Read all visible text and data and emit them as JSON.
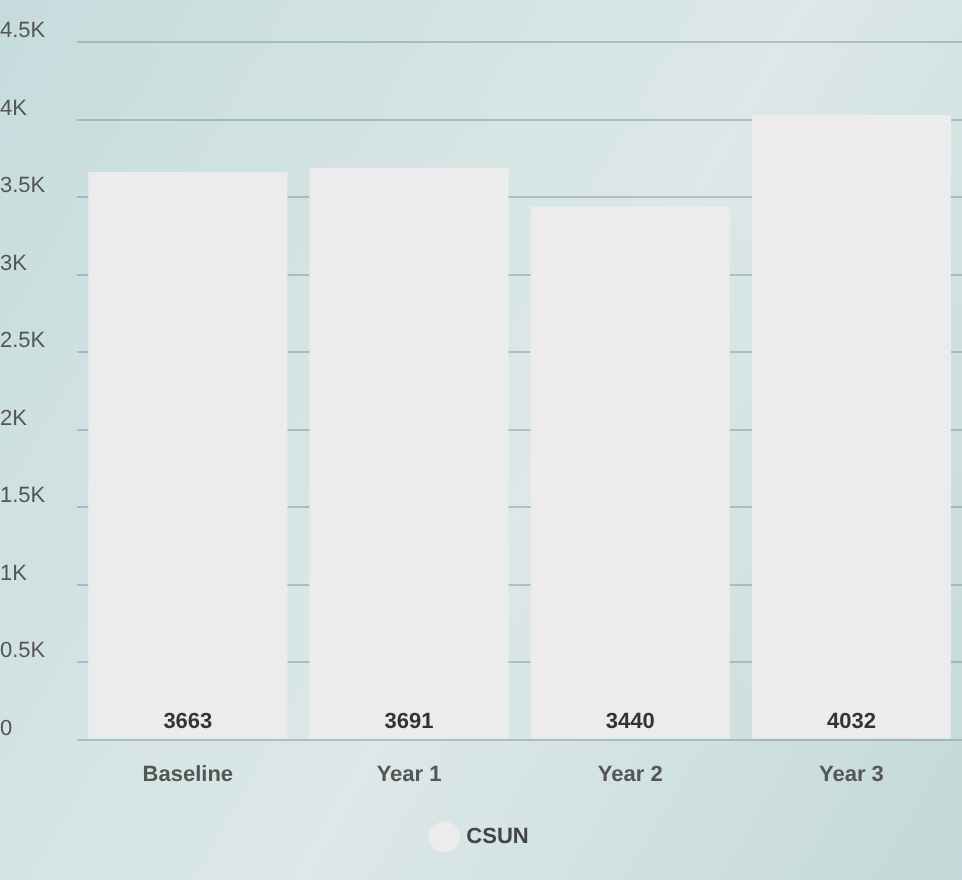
{
  "chart_data": {
    "type": "bar",
    "categories": [
      "Baseline",
      "Year 1",
      "Year 2",
      "Year 3"
    ],
    "series": [
      {
        "name": "CSUN",
        "color": "#ececec",
        "values": [
          3663,
          3691,
          3440,
          4032
        ]
      }
    ],
    "ylim": [
      0,
      4500
    ],
    "yticks": [
      0,
      {
        "value": 500,
        "label": "0.5K"
      },
      {
        "value": 1000,
        "label": "1K"
      },
      {
        "value": 1500,
        "label": "1.5K"
      },
      {
        "value": 2000,
        "label": "2K"
      },
      {
        "value": 2500,
        "label": "2.5K"
      },
      {
        "value": 3000,
        "label": "3K"
      },
      {
        "value": 3500,
        "label": "3.5K"
      },
      {
        "value": 4000,
        "label": "4K"
      },
      {
        "value": 4500,
        "label": "4.5K"
      }
    ],
    "grid": "y",
    "legend": "bottom",
    "data_labels": true
  }
}
